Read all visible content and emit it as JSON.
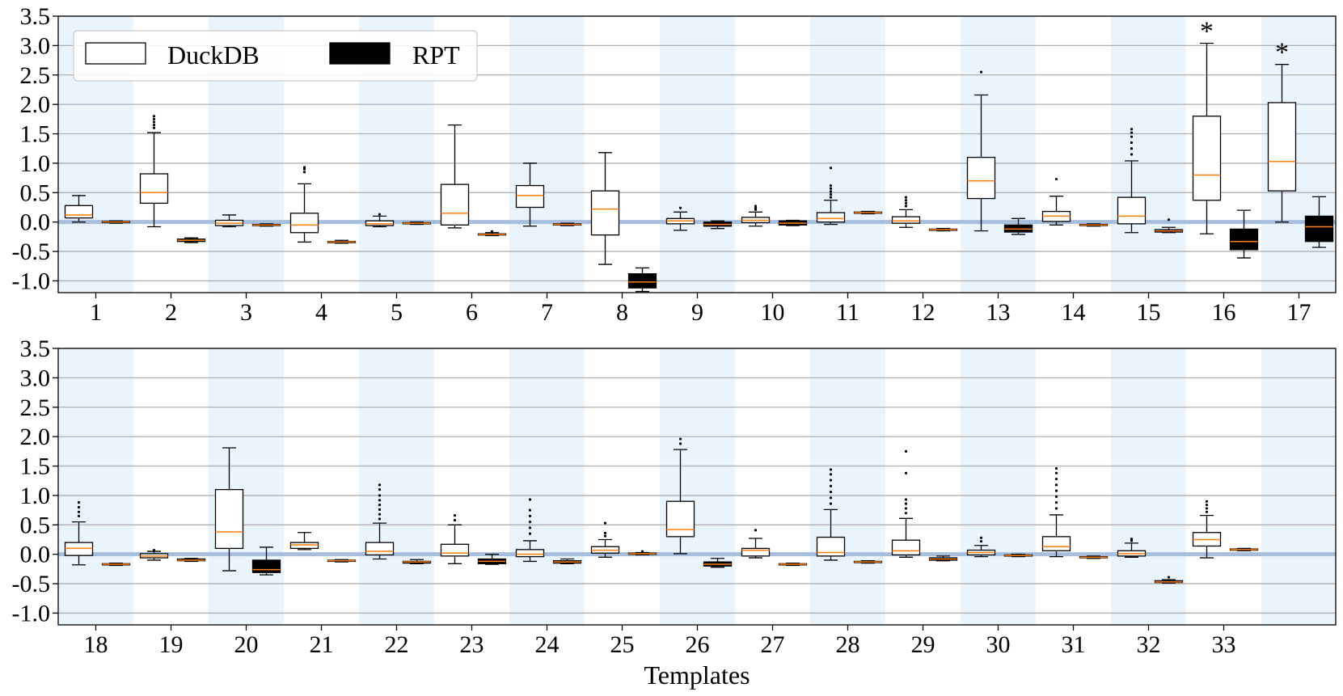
{
  "chart_data": [
    {
      "type": "box",
      "panel": "top",
      "ylim": [
        -1.2,
        3.5
      ],
      "yticks": [
        "3.5",
        "3.0",
        "2.5",
        "2.0",
        "1.5",
        "1.0",
        "0.5",
        "0.0",
        "-0.5",
        "-1.0"
      ],
      "ytick_values": [
        3.5,
        3.0,
        2.5,
        2.0,
        1.5,
        1.0,
        0.5,
        0.0,
        -0.5,
        -1.0
      ],
      "grid": "horizontal",
      "reference_line": 0.0,
      "xlabel": "",
      "legend": {
        "position": "top-left",
        "entries": [
          {
            "label": "DuckDB",
            "fill": "#ffffff"
          },
          {
            "label": "RPT",
            "fill": "#000000"
          }
        ]
      },
      "series": [
        {
          "name": "DuckDB",
          "fill": "#ffffff"
        },
        {
          "name": "RPT",
          "fill": "#000000"
        }
      ],
      "templates": [
        {
          "label": "1",
          "shaded": true,
          "duckdb": {
            "whislo": 0.0,
            "q1": 0.07,
            "med": 0.12,
            "q3": 0.28,
            "whishi": 0.45,
            "fliers": []
          },
          "rpt": {
            "whislo": -0.02,
            "q1": -0.01,
            "med": 0.0,
            "q3": 0.01,
            "whishi": 0.02,
            "fliers": []
          }
        },
        {
          "label": "2",
          "shaded": false,
          "duckdb": {
            "whislo": -0.08,
            "q1": 0.32,
            "med": 0.5,
            "q3": 0.82,
            "whishi": 1.52,
            "fliers": [
              1.6,
              1.65,
              1.7,
              1.75,
              1.8
            ]
          },
          "rpt": {
            "whislo": -0.35,
            "q1": -0.33,
            "med": -0.31,
            "q3": -0.29,
            "whishi": -0.27,
            "fliers": []
          }
        },
        {
          "label": "3",
          "shaded": true,
          "duckdb": {
            "whislo": -0.08,
            "q1": -0.06,
            "med": -0.02,
            "q3": 0.03,
            "whishi": 0.12,
            "fliers": []
          },
          "rpt": {
            "whislo": -0.07,
            "q1": -0.06,
            "med": -0.05,
            "q3": -0.04,
            "whishi": -0.03,
            "fliers": []
          }
        },
        {
          "label": "4",
          "shaded": false,
          "duckdb": {
            "whislo": -0.34,
            "q1": -0.18,
            "med": -0.05,
            "q3": 0.15,
            "whishi": 0.65,
            "fliers": [
              0.85,
              0.9,
              0.93
            ]
          },
          "rpt": {
            "whislo": -0.36,
            "q1": -0.35,
            "med": -0.34,
            "q3": -0.33,
            "whishi": -0.31,
            "fliers": []
          }
        },
        {
          "label": "5",
          "shaded": true,
          "duckdb": {
            "whislo": -0.08,
            "q1": -0.06,
            "med": -0.03,
            "q3": 0.02,
            "whishi": 0.1,
            "fliers": [
              0.13
            ]
          },
          "rpt": {
            "whislo": -0.04,
            "q1": -0.03,
            "med": -0.02,
            "q3": -0.01,
            "whishi": 0.0,
            "fliers": []
          }
        },
        {
          "label": "6",
          "shaded": false,
          "duckdb": {
            "whislo": -0.1,
            "q1": -0.05,
            "med": 0.15,
            "q3": 0.64,
            "whishi": 1.65,
            "fliers": []
          },
          "rpt": {
            "whislo": -0.23,
            "q1": -0.22,
            "med": -0.21,
            "q3": -0.2,
            "whishi": -0.18,
            "fliers": [
              -0.16
            ]
          }
        },
        {
          "label": "7",
          "shaded": true,
          "duckdb": {
            "whislo": -0.07,
            "q1": 0.25,
            "med": 0.45,
            "q3": 0.62,
            "whishi": 1.0,
            "fliers": []
          },
          "rpt": {
            "whislo": -0.06,
            "q1": -0.05,
            "med": -0.04,
            "q3": -0.03,
            "whishi": -0.02,
            "fliers": []
          }
        },
        {
          "label": "8",
          "shaded": false,
          "duckdb": {
            "whislo": -0.72,
            "q1": -0.22,
            "med": 0.22,
            "q3": 0.53,
            "whishi": 1.18,
            "fliers": []
          },
          "rpt": {
            "whislo": -1.18,
            "q1": -1.12,
            "med": -1.02,
            "q3": -0.88,
            "whishi": -0.78,
            "fliers": []
          }
        },
        {
          "label": "9",
          "shaded": true,
          "duckdb": {
            "whislo": -0.14,
            "q1": -0.03,
            "med": 0.02,
            "q3": 0.06,
            "whishi": 0.17,
            "fliers": [
              0.24
            ]
          },
          "rpt": {
            "whislo": -0.11,
            "q1": -0.07,
            "med": -0.04,
            "q3": 0.0,
            "whishi": 0.02,
            "fliers": []
          }
        },
        {
          "label": "10",
          "shaded": false,
          "duckdb": {
            "whislo": -0.07,
            "q1": -0.01,
            "med": 0.03,
            "q3": 0.08,
            "whishi": 0.17,
            "fliers": [
              0.21,
              0.24,
              0.27
            ]
          },
          "rpt": {
            "whislo": -0.06,
            "q1": -0.05,
            "med": -0.02,
            "q3": 0.02,
            "whishi": 0.03,
            "fliers": []
          }
        },
        {
          "label": "11",
          "shaded": true,
          "duckdb": {
            "whislo": -0.04,
            "q1": 0.0,
            "med": 0.06,
            "q3": 0.16,
            "whishi": 0.37,
            "fliers": [
              0.42,
              0.47,
              0.52,
              0.57,
              0.62,
              0.92
            ]
          },
          "rpt": {
            "whislo": 0.14,
            "q1": 0.15,
            "med": 0.16,
            "q3": 0.17,
            "whishi": 0.18,
            "fliers": []
          }
        },
        {
          "label": "12",
          "shaded": false,
          "duckdb": {
            "whislo": -0.09,
            "q1": -0.02,
            "med": 0.02,
            "q3": 0.09,
            "whishi": 0.21,
            "fliers": [
              0.27,
              0.32,
              0.37,
              0.42
            ]
          },
          "rpt": {
            "whislo": -0.15,
            "q1": -0.14,
            "med": -0.13,
            "q3": -0.12,
            "whishi": -0.11,
            "fliers": []
          }
        },
        {
          "label": "13",
          "shaded": true,
          "duckdb": {
            "whislo": -0.15,
            "q1": 0.4,
            "med": 0.7,
            "q3": 1.1,
            "whishi": 2.16,
            "fliers": [
              2.55
            ]
          },
          "rpt": {
            "whislo": -0.21,
            "q1": -0.17,
            "med": -0.12,
            "q3": -0.05,
            "whishi": 0.06,
            "fliers": []
          }
        },
        {
          "label": "14",
          "shaded": false,
          "duckdb": {
            "whislo": -0.05,
            "q1": 0.01,
            "med": 0.1,
            "q3": 0.18,
            "whishi": 0.44,
            "fliers": [
              0.73
            ]
          },
          "rpt": {
            "whislo": -0.07,
            "q1": -0.06,
            "med": -0.05,
            "q3": -0.04,
            "whishi": -0.03,
            "fliers": []
          }
        },
        {
          "label": "15",
          "shaded": true,
          "duckdb": {
            "whislo": -0.18,
            "q1": -0.03,
            "med": 0.1,
            "q3": 0.42,
            "whishi": 1.04,
            "fliers": [
              1.15,
              1.25,
              1.35,
              1.45,
              1.52,
              1.58
            ]
          },
          "rpt": {
            "whislo": -0.18,
            "q1": -0.17,
            "med": -0.15,
            "q3": -0.13,
            "whishi": -0.09,
            "fliers": [
              0.04
            ]
          }
        },
        {
          "label": "16",
          "shaded": false,
          "duckdb": {
            "whislo": -0.2,
            "q1": 0.37,
            "med": 0.8,
            "q3": 1.8,
            "whishi": 3.04,
            "fliers": []
          },
          "rpt": {
            "whislo": -0.61,
            "q1": -0.47,
            "med": -0.33,
            "q3": -0.12,
            "whishi": 0.2,
            "fliers": []
          },
          "annotation": "*"
        },
        {
          "label": "17",
          "shaded": true,
          "duckdb": {
            "whislo": 0.0,
            "q1": 0.53,
            "med": 1.03,
            "q3": 2.03,
            "whishi": 2.68,
            "fliers": []
          },
          "rpt": {
            "whislo": -0.43,
            "q1": -0.33,
            "med": -0.08,
            "q3": 0.1,
            "whishi": 0.43,
            "fliers": []
          },
          "annotation": "*"
        }
      ]
    },
    {
      "type": "box",
      "panel": "bottom",
      "ylim": [
        -1.2,
        3.5
      ],
      "yticks": [
        "3.5",
        "3.0",
        "2.5",
        "2.0",
        "1.5",
        "1.0",
        "0.5",
        "0.0",
        "-0.5",
        "-1.0"
      ],
      "ytick_values": [
        3.5,
        3.0,
        2.5,
        2.0,
        1.5,
        1.0,
        0.5,
        0.0,
        -0.5,
        -1.0
      ],
      "grid": "horizontal",
      "reference_line": 0.0,
      "xlabel": "Templates",
      "series": [
        {
          "name": "DuckDB",
          "fill": "#ffffff"
        },
        {
          "name": "RPT",
          "fill": "#000000"
        }
      ],
      "templates": [
        {
          "label": "18",
          "shaded": true,
          "duckdb": {
            "whislo": -0.18,
            "q1": -0.02,
            "med": 0.1,
            "q3": 0.2,
            "whishi": 0.55,
            "fliers": [
              0.65,
              0.72,
              0.8,
              0.88
            ]
          },
          "rpt": {
            "whislo": -0.19,
            "q1": -0.18,
            "med": -0.17,
            "q3": -0.16,
            "whishi": -0.15,
            "fliers": []
          }
        },
        {
          "label": "19",
          "shaded": false,
          "duckdb": {
            "whislo": -0.1,
            "q1": -0.06,
            "med": -0.03,
            "q3": 0.01,
            "whishi": 0.05,
            "fliers": [
              0.07
            ]
          },
          "rpt": {
            "whislo": -0.12,
            "q1": -0.11,
            "med": -0.1,
            "q3": -0.08,
            "whishi": -0.07,
            "fliers": []
          }
        },
        {
          "label": "20",
          "shaded": true,
          "duckdb": {
            "whislo": -0.28,
            "q1": 0.1,
            "med": 0.38,
            "q3": 1.1,
            "whishi": 1.81,
            "fliers": []
          },
          "rpt": {
            "whislo": -0.35,
            "q1": -0.31,
            "med": -0.26,
            "q3": -0.1,
            "whishi": 0.12,
            "fliers": []
          }
        },
        {
          "label": "21",
          "shaded": false,
          "duckdb": {
            "whislo": 0.08,
            "q1": 0.1,
            "med": 0.16,
            "q3": 0.2,
            "whishi": 0.37,
            "fliers": []
          },
          "rpt": {
            "whislo": -0.13,
            "q1": -0.12,
            "med": -0.11,
            "q3": -0.1,
            "whishi": -0.09,
            "fliers": []
          }
        },
        {
          "label": "22",
          "shaded": true,
          "duckdb": {
            "whislo": -0.08,
            "q1": -0.01,
            "med": 0.05,
            "q3": 0.2,
            "whishi": 0.53,
            "fliers": [
              0.6,
              0.68,
              0.76,
              0.84,
              0.92,
              1.0,
              1.1,
              1.18
            ]
          },
          "rpt": {
            "whislo": -0.16,
            "q1": -0.15,
            "med": -0.13,
            "q3": -0.12,
            "whishi": -0.09,
            "fliers": []
          }
        },
        {
          "label": "23",
          "shaded": false,
          "duckdb": {
            "whislo": -0.16,
            "q1": -0.03,
            "med": 0.02,
            "q3": 0.17,
            "whishi": 0.5,
            "fliers": [
              0.58,
              0.66
            ]
          },
          "rpt": {
            "whislo": -0.17,
            "q1": -0.16,
            "med": -0.12,
            "q3": -0.08,
            "whishi": 0.0,
            "fliers": []
          }
        },
        {
          "label": "24",
          "shaded": true,
          "duckdb": {
            "whislo": -0.12,
            "q1": -0.04,
            "med": 0.0,
            "q3": 0.08,
            "whishi": 0.23,
            "fliers": [
              0.35,
              0.45,
              0.55,
              0.65,
              0.75,
              0.93
            ]
          },
          "rpt": {
            "whislo": -0.16,
            "q1": -0.15,
            "med": -0.13,
            "q3": -0.11,
            "whishi": -0.08,
            "fliers": []
          }
        },
        {
          "label": "25",
          "shaded": false,
          "duckdb": {
            "whislo": -0.05,
            "q1": 0.02,
            "med": 0.07,
            "q3": 0.13,
            "whishi": 0.25,
            "fliers": [
              0.31,
              0.36,
              0.53
            ]
          },
          "rpt": {
            "whislo": -0.01,
            "q1": 0.0,
            "med": 0.01,
            "q3": 0.02,
            "whishi": 0.03,
            "fliers": [
              0.05
            ]
          }
        },
        {
          "label": "26",
          "shaded": true,
          "duckdb": {
            "whislo": 0.01,
            "q1": 0.3,
            "med": 0.42,
            "q3": 0.9,
            "whishi": 1.78,
            "fliers": [
              1.88,
              1.96
            ]
          },
          "rpt": {
            "whislo": -0.22,
            "q1": -0.2,
            "med": -0.17,
            "q3": -0.13,
            "whishi": -0.07,
            "fliers": []
          }
        },
        {
          "label": "27",
          "shaded": false,
          "duckdb": {
            "whislo": -0.06,
            "q1": -0.03,
            "med": 0.07,
            "q3": 0.1,
            "whishi": 0.27,
            "fliers": [
              0.41
            ]
          },
          "rpt": {
            "whislo": -0.19,
            "q1": -0.18,
            "med": -0.17,
            "q3": -0.16,
            "whishi": -0.15,
            "fliers": []
          }
        },
        {
          "label": "28",
          "shaded": true,
          "duckdb": {
            "whislo": -0.1,
            "q1": -0.03,
            "med": 0.03,
            "q3": 0.29,
            "whishi": 0.76,
            "fliers": [
              0.86,
              0.96,
              1.06,
              1.16,
              1.26,
              1.36,
              1.44
            ]
          },
          "rpt": {
            "whislo": -0.15,
            "q1": -0.14,
            "med": -0.13,
            "q3": -0.12,
            "whishi": -0.11,
            "fliers": []
          }
        },
        {
          "label": "29",
          "shaded": false,
          "duckdb": {
            "whislo": -0.05,
            "q1": -0.01,
            "med": 0.06,
            "q3": 0.24,
            "whishi": 0.61,
            "fliers": [
              0.7,
              0.78,
              0.86,
              0.93,
              1.38,
              1.75
            ]
          },
          "rpt": {
            "whislo": -0.11,
            "q1": -0.1,
            "med": -0.08,
            "q3": -0.06,
            "whishi": -0.03,
            "fliers": []
          }
        },
        {
          "label": "30",
          "shaded": true,
          "duckdb": {
            "whislo": -0.04,
            "q1": -0.01,
            "med": 0.03,
            "q3": 0.07,
            "whishi": 0.15,
            "fliers": [
              0.22,
              0.28
            ]
          },
          "rpt": {
            "whislo": -0.04,
            "q1": -0.03,
            "med": -0.02,
            "q3": -0.01,
            "whishi": 0.0,
            "fliers": []
          }
        },
        {
          "label": "31",
          "shaded": false,
          "duckdb": {
            "whislo": -0.04,
            "q1": 0.06,
            "med": 0.13,
            "q3": 0.3,
            "whishi": 0.67,
            "fliers": [
              0.78,
              0.88,
              0.98,
              1.08,
              1.18,
              1.28,
              1.38,
              1.46
            ]
          },
          "rpt": {
            "whislo": -0.07,
            "q1": -0.06,
            "med": -0.05,
            "q3": -0.04,
            "whishi": -0.03,
            "fliers": []
          }
        },
        {
          "label": "32",
          "shaded": true,
          "duckdb": {
            "whislo": -0.05,
            "q1": -0.03,
            "med": 0.01,
            "q3": 0.06,
            "whishi": 0.19,
            "fliers": [
              0.23,
              0.26
            ]
          },
          "rpt": {
            "whislo": -0.49,
            "q1": -0.48,
            "med": -0.47,
            "q3": -0.45,
            "whishi": -0.43,
            "fliers": [
              -0.39
            ]
          }
        },
        {
          "label": "33",
          "shaded": false,
          "duckdb": {
            "whislo": -0.06,
            "q1": 0.14,
            "med": 0.25,
            "q3": 0.37,
            "whishi": 0.66,
            "fliers": [
              0.72,
              0.78,
              0.84,
              0.9
            ]
          },
          "rpt": {
            "whislo": 0.06,
            "q1": 0.07,
            "med": 0.08,
            "q3": 0.09,
            "whishi": 0.1,
            "fliers": []
          }
        },
        {
          "label": "",
          "shaded": true,
          "duckdb": null,
          "rpt": null
        }
      ]
    }
  ],
  "colors": {
    "band": "#eaf4fd",
    "grid": "#b0b0b0",
    "zero_line": "#a7bedd",
    "median": "#ff7f0e",
    "box_edge": "#000000",
    "legend_edge": "#cccccc"
  }
}
